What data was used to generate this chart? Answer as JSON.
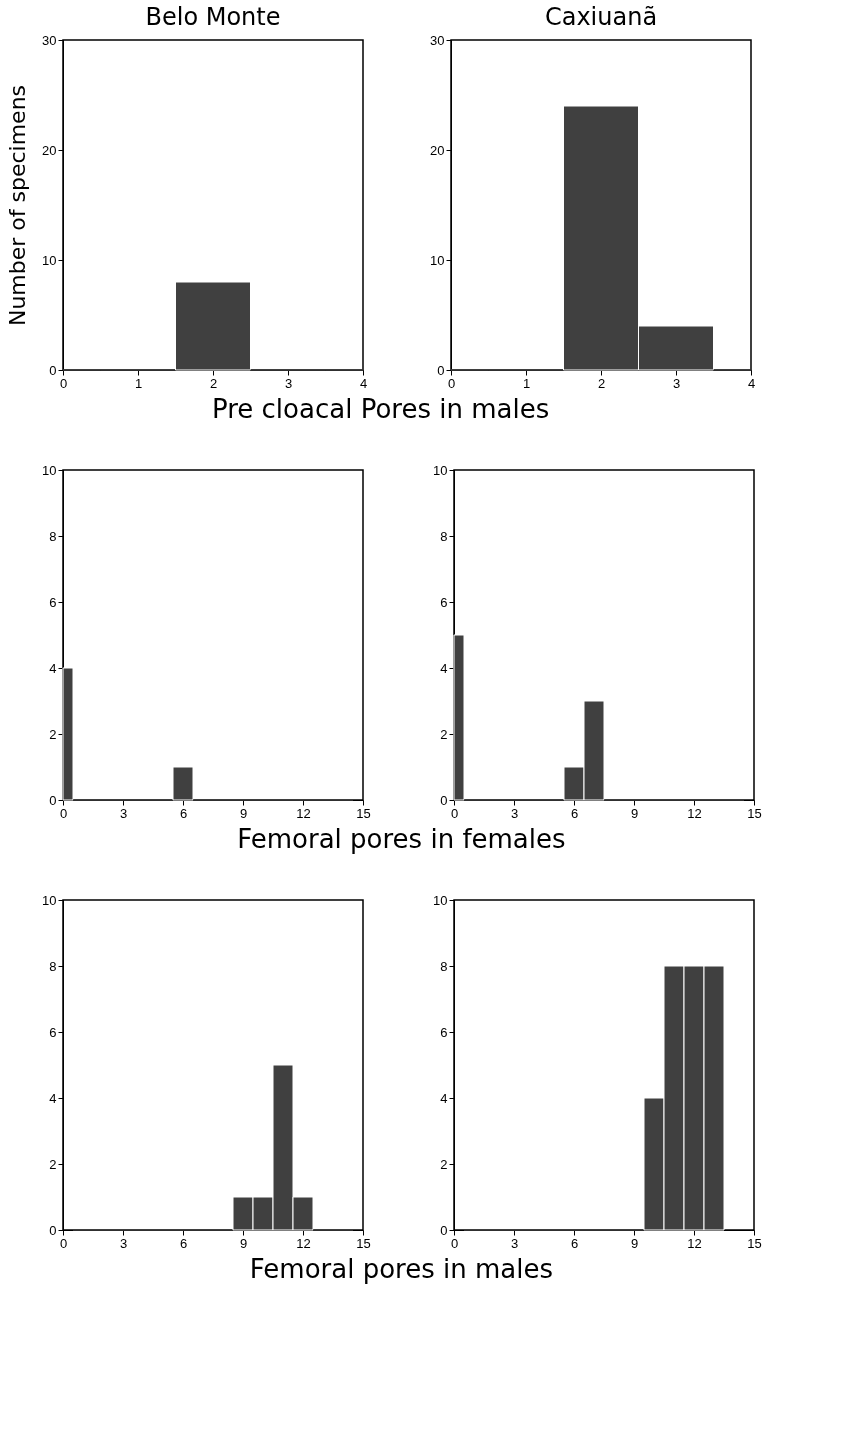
{
  "chart_data": [
    {
      "type": "histogram",
      "title": "Belo Monte",
      "ylabel": "Number of specimens",
      "xlabel": "Pre cloacal Pores in males",
      "bins": [
        0,
        0.5,
        1.5,
        2.5,
        3.5,
        4
      ],
      "values": [
        0,
        0,
        8,
        0,
        0
      ],
      "color": "#404040",
      "xlim": [
        0,
        4
      ],
      "xticks": [
        0,
        1,
        2,
        3,
        4
      ],
      "ylim": [
        0,
        30
      ],
      "yticks": [
        0,
        10,
        20,
        30
      ],
      "grid": false
    },
    {
      "type": "histogram",
      "title": "Caxiuanã",
      "bins": [
        0,
        0.5,
        1.5,
        2.5,
        3.5,
        4
      ],
      "values": [
        0,
        0,
        24,
        4,
        0
      ],
      "color": "#404040",
      "xlim": [
        0,
        4
      ],
      "xticks": [
        0,
        1,
        2,
        3,
        4
      ],
      "ylim": [
        0,
        30
      ],
      "yticks": [
        0,
        10,
        20,
        30
      ],
      "grid": false
    },
    {
      "type": "histogram",
      "xlabel": "Femoral pores in females",
      "bins": [
        0,
        0.5,
        1.5,
        2.5,
        3.5,
        4.5,
        5.5,
        6.5,
        7.5,
        8.5,
        9.5,
        10.5,
        11.5,
        12.5,
        13.5,
        14.5
      ],
      "values": [
        4,
        0,
        0,
        0,
        0,
        0,
        1,
        0,
        0,
        0,
        0,
        0,
        0,
        0,
        0
      ],
      "color": "#404040",
      "xlim": [
        0,
        15
      ],
      "xticks": [
        0,
        3,
        6,
        9,
        12,
        15
      ],
      "ylim": [
        0,
        10
      ],
      "yticks": [
        0,
        2,
        4,
        6,
        8,
        10
      ],
      "grid": false
    },
    {
      "type": "histogram",
      "bins": [
        0,
        0.5,
        1.5,
        2.5,
        3.5,
        4.5,
        5.5,
        6.5,
        7.5,
        8.5,
        9.5,
        10.5,
        11.5,
        12.5,
        13.5,
        14.5
      ],
      "values": [
        5,
        0,
        0,
        0,
        0,
        0,
        1,
        3,
        0,
        0,
        0,
        0,
        0,
        0,
        0
      ],
      "color": "#404040",
      "xlim": [
        0,
        15
      ],
      "xticks": [
        0,
        3,
        6,
        9,
        12,
        15
      ],
      "ylim": [
        0,
        10
      ],
      "yticks": [
        0,
        2,
        4,
        6,
        8,
        10
      ],
      "grid": false
    },
    {
      "type": "histogram",
      "xlabel": "Femoral pores in males",
      "bins": [
        0.5,
        1.5,
        2.5,
        3.5,
        4.5,
        5.5,
        6.5,
        7.5,
        8.5,
        9.5,
        10.5,
        11.5,
        12.5,
        13.5,
        14.5
      ],
      "values": [
        0,
        0,
        0,
        0,
        0,
        0,
        0,
        0,
        1,
        1,
        5,
        1,
        0,
        0
      ],
      "color": "#404040",
      "xlim": [
        0,
        15
      ],
      "xticks": [
        0,
        3,
        6,
        9,
        12,
        15
      ],
      "ylim": [
        0,
        10
      ],
      "yticks": [
        0,
        2,
        4,
        6,
        8,
        10
      ],
      "grid": false
    },
    {
      "type": "histogram",
      "bins": [
        0.5,
        1.5,
        2.5,
        3.5,
        4.5,
        5.5,
        6.5,
        7.5,
        8.5,
        9.5,
        10.5,
        11.5,
        12.5,
        13.5
      ],
      "values": [
        0,
        0,
        0,
        0,
        0,
        0,
        0,
        0,
        0,
        4,
        8,
        8,
        8
      ],
      "color": "#404040",
      "xlim": [
        0,
        15
      ],
      "xticks": [
        0,
        3,
        6,
        9,
        12,
        15
      ],
      "ylim": [
        0,
        10
      ],
      "yticks": [
        0,
        2,
        4,
        6,
        8,
        10
      ],
      "grid": false
    }
  ]
}
